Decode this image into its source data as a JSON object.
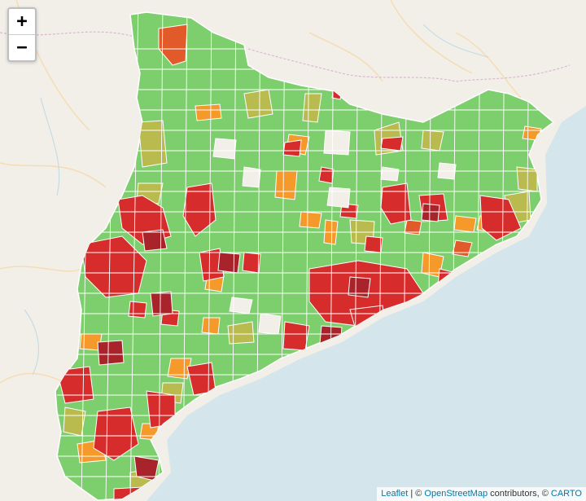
{
  "map": {
    "zoom_in_label": "+",
    "zoom_out_label": "−",
    "attribution": {
      "leaflet": "Leaflet",
      "sep1": " | © ",
      "osm": "OpenStreetMap",
      "mid": " contributors, © ",
      "carto": "CARTO"
    },
    "colors": {
      "land": "#f2efe9",
      "sea": "#d4e6ec",
      "green": "#7ccf6c",
      "yellow_green": "#b9bb4e",
      "orange": "#f59a2a",
      "red_orange": "#e35a2a",
      "red": "#d62c2c",
      "dark_red": "#a8232a",
      "boundary": "#ffffff"
    }
  }
}
